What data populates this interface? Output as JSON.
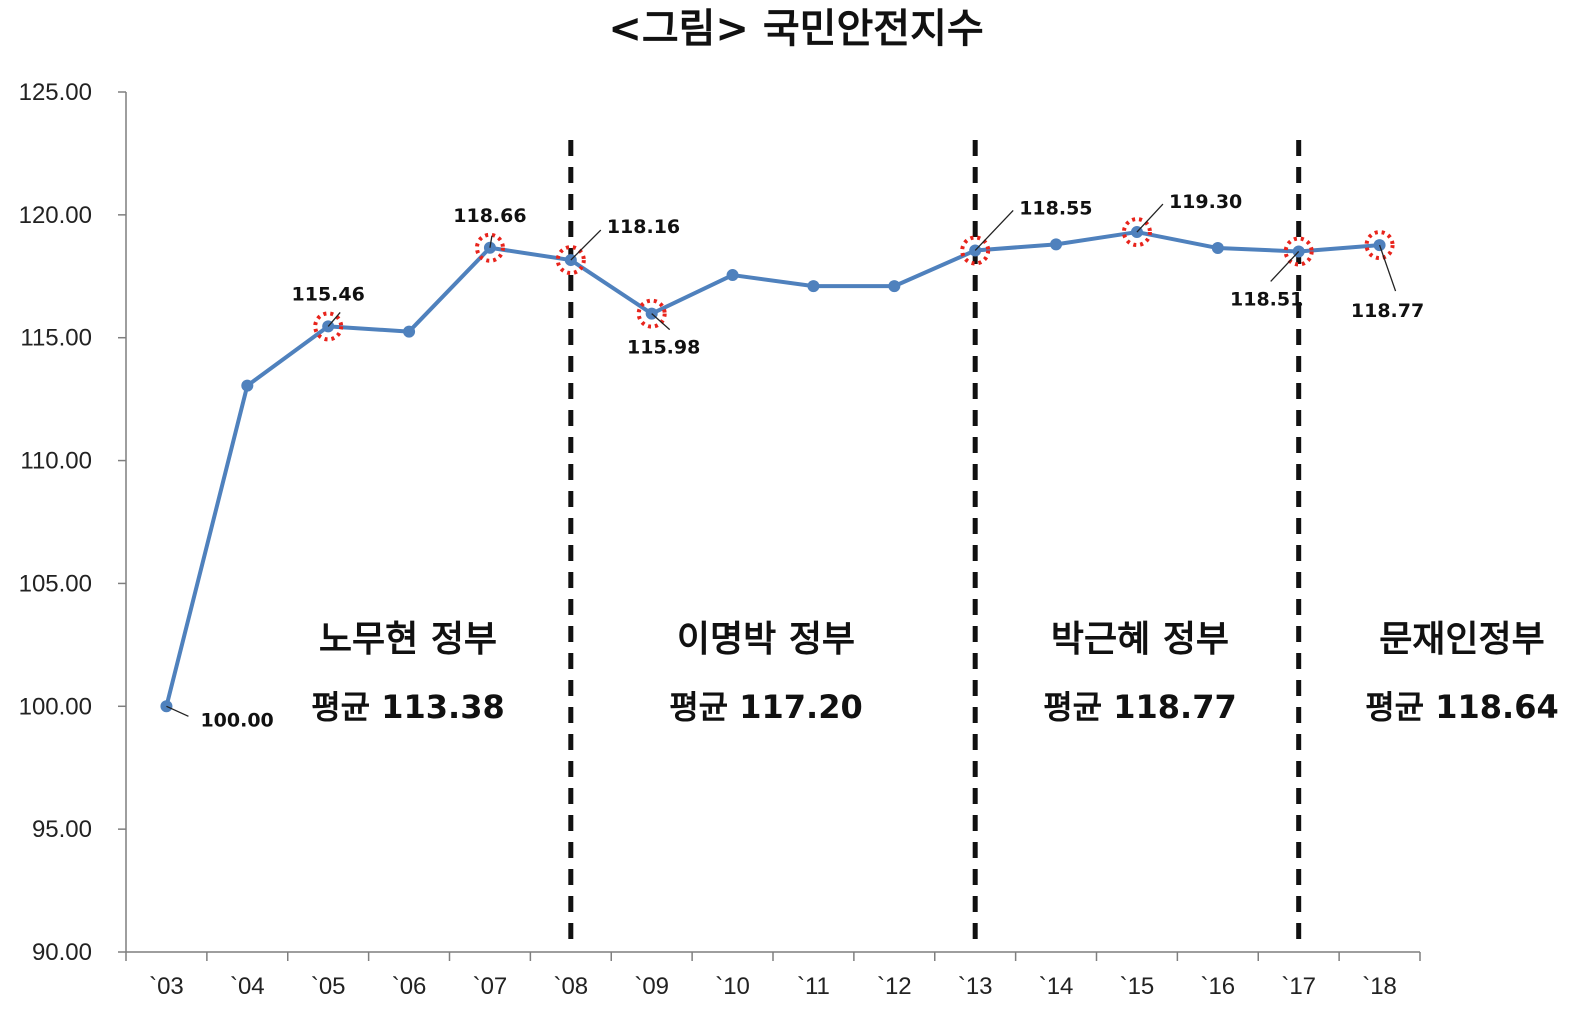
{
  "chart_data": {
    "type": "line",
    "title": "<그림>  국민안전지수",
    "xlabel": "",
    "ylabel": "",
    "ylim": [
      90,
      125
    ],
    "yticks": [
      "90.00",
      "95.00",
      "100.00",
      "105.00",
      "110.00",
      "115.00",
      "120.00",
      "125.00"
    ],
    "categories": [
      "`03",
      "`04",
      "`05",
      "`06",
      "`07",
      "`08",
      "`09",
      "`10",
      "`11",
      "`12",
      "`13",
      "`14",
      "`15",
      "`16",
      "`17",
      "`18"
    ],
    "series": [
      {
        "values": [
          100.0,
          113.05,
          115.46,
          115.25,
          118.66,
          118.16,
          115.98,
          117.55,
          117.1,
          117.1,
          118.55,
          118.8,
          119.3,
          118.65,
          118.51,
          118.77
        ],
        "color": "#4f81bd"
      }
    ],
    "data_labels": [
      {
        "index": 0,
        "text": "100.00"
      },
      {
        "index": 2,
        "text": "115.46"
      },
      {
        "index": 4,
        "text": "118.66"
      },
      {
        "index": 5,
        "text": "118.16"
      },
      {
        "index": 6,
        "text": "115.98"
      },
      {
        "index": 10,
        "text": "118.55"
      },
      {
        "index": 12,
        "text": "119.30"
      },
      {
        "index": 14,
        "text": "118.51"
      },
      {
        "index": 15,
        "text": "118.77"
      }
    ],
    "highlight_color": "#e8241c",
    "dividers": [
      5,
      10,
      14
    ],
    "annotations": [
      {
        "name": "노무현 정부",
        "avg": "평균 113.38"
      },
      {
        "name": "이명박 정부",
        "avg": "평균 117.20"
      },
      {
        "name": "박근혜 정부",
        "avg": "평균 118.77"
      },
      {
        "name": "문재인정부",
        "avg": "평균 118.64"
      }
    ],
    "grid": false,
    "legend": "none"
  }
}
